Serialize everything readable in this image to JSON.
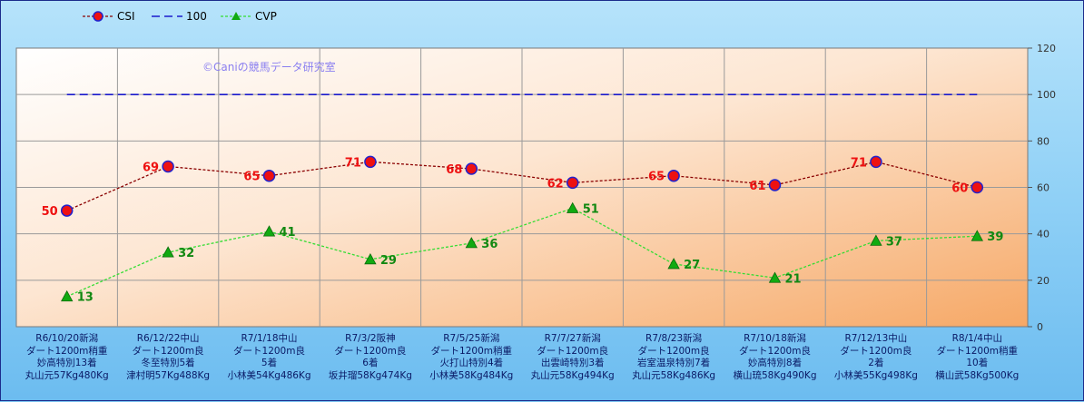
{
  "chart_data": {
    "type": "line",
    "title": "",
    "xlabel": "",
    "ylabel": "",
    "ylim": [
      0,
      120
    ],
    "yticks": [
      0,
      20,
      40,
      60,
      80,
      100,
      120
    ],
    "grid": true,
    "legend_position": "top-left",
    "annotation": "©Caniの競馬データ研究室",
    "categories": [
      [
        "R6/10/20新潟",
        "ダート1200m稍重",
        "妙高特別13着",
        "丸山元57Kg480Kg"
      ],
      [
        "R6/12/22中山",
        "ダート1200m良",
        "冬至特別5着",
        "津村明57Kg488Kg"
      ],
      [
        "R7/1/18中山",
        "ダート1200m良",
        "5着",
        "小林美54Kg486Kg"
      ],
      [
        "R7/3/2阪神",
        "ダート1200m良",
        "6着",
        "坂井瑠58Kg474Kg"
      ],
      [
        "R7/5/25新潟",
        "ダート1200m稍重",
        "火打山特別4着",
        "小林美58Kg484Kg"
      ],
      [
        "R7/7/27新潟",
        "ダート1200m良",
        "出雲崎特別3着",
        "丸山元58Kg494Kg"
      ],
      [
        "R7/8/23新潟",
        "ダート1200m良",
        "岩室温泉特別7着",
        "丸山元58Kg486Kg"
      ],
      [
        "R7/10/18新潟",
        "ダート1200m良",
        "妙高特別8着",
        "横山琉58Kg490Kg"
      ],
      [
        "R7/12/13中山",
        "ダート1200m良",
        "2着",
        "小林美55Kg498Kg"
      ],
      [
        "R8/1/4中山",
        "ダート1200m稍重",
        "10着",
        "横山武58Kg500Kg"
      ]
    ],
    "series": [
      {
        "name": "CSI",
        "values": [
          50,
          69,
          65,
          71,
          68,
          62,
          65,
          61,
          71,
          60
        ],
        "color": "#8b0000",
        "marker": "circle",
        "marker_fill": "#ee1111",
        "marker_stroke": "#2222cc"
      },
      {
        "name": "100",
        "values": [
          100,
          100,
          100,
          100,
          100,
          100,
          100,
          100,
          100,
          100
        ],
        "color": "#1a1acc",
        "marker": "none"
      },
      {
        "name": "CVP",
        "values": [
          13,
          32,
          41,
          29,
          36,
          51,
          27,
          21,
          37,
          39
        ],
        "color": "#33dd33",
        "marker": "triangle",
        "marker_fill": "#11aa11"
      }
    ]
  }
}
